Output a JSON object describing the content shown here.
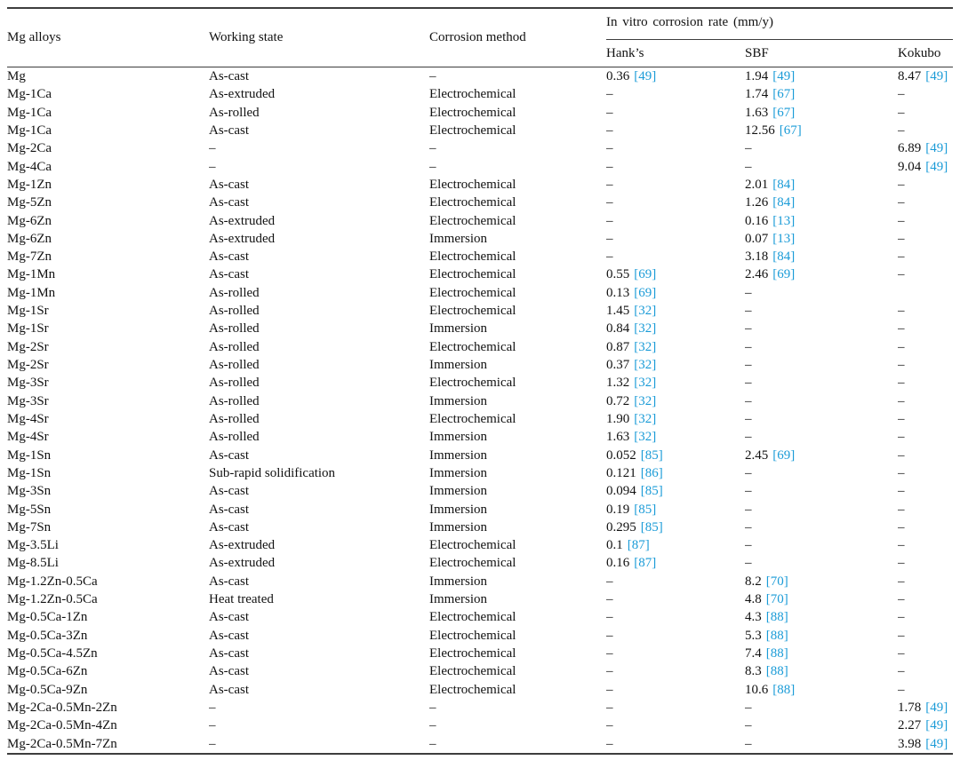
{
  "table": {
    "citation_color": "#1a9bd7",
    "dash": "–",
    "headers": {
      "alloy": "Mg alloys",
      "state": "Working state",
      "method": "Corrosion method",
      "group": "In vitro corrosion rate (mm/y)",
      "hanks": "Hank’s",
      "sbf": "SBF",
      "kokubo": "Kokubo"
    },
    "rows": [
      {
        "alloy": "Mg",
        "state": "As-cast",
        "method": "–",
        "hanks": "0.36",
        "hanks_ref": "[49]",
        "sbf": "1.94",
        "sbf_ref": "[49]",
        "kokubo": "8.47",
        "kokubo_ref": "[49]"
      },
      {
        "alloy": "Mg-1Ca",
        "state": "As-extruded",
        "method": "Electrochemical",
        "hanks": "–",
        "hanks_ref": "",
        "sbf": "1.74",
        "sbf_ref": "[67]",
        "kokubo": "–",
        "kokubo_ref": ""
      },
      {
        "alloy": "Mg-1Ca",
        "state": "As-rolled",
        "method": "Electrochemical",
        "hanks": "–",
        "hanks_ref": "",
        "sbf": "1.63",
        "sbf_ref": "[67]",
        "kokubo": "–",
        "kokubo_ref": ""
      },
      {
        "alloy": "Mg-1Ca",
        "state": "As-cast",
        "method": "Electrochemical",
        "hanks": "–",
        "hanks_ref": "",
        "sbf": "12.56",
        "sbf_ref": "[67]",
        "kokubo": "–",
        "kokubo_ref": ""
      },
      {
        "alloy": "Mg-2Ca",
        "state": "–",
        "method": "–",
        "hanks": "–",
        "hanks_ref": "",
        "sbf": "–",
        "sbf_ref": "",
        "kokubo": "6.89",
        "kokubo_ref": "[49]"
      },
      {
        "alloy": "Mg-4Ca",
        "state": "–",
        "method": "–",
        "hanks": "–",
        "hanks_ref": "",
        "sbf": "–",
        "sbf_ref": "",
        "kokubo": "9.04",
        "kokubo_ref": "[49]"
      },
      {
        "alloy": "Mg-1Zn",
        "state": "As-cast",
        "method": "Electrochemical",
        "hanks": "–",
        "hanks_ref": "",
        "sbf": "2.01",
        "sbf_ref": "[84]",
        "kokubo": "–",
        "kokubo_ref": ""
      },
      {
        "alloy": "Mg-5Zn",
        "state": "As-cast",
        "method": "Electrochemical",
        "hanks": "–",
        "hanks_ref": "",
        "sbf": "1.26",
        "sbf_ref": "[84]",
        "kokubo": "–",
        "kokubo_ref": ""
      },
      {
        "alloy": "Mg-6Zn",
        "state": "As-extruded",
        "method": "Electrochemical",
        "hanks": "–",
        "hanks_ref": "",
        "sbf": "0.16",
        "sbf_ref": "[13]",
        "kokubo": "–",
        "kokubo_ref": ""
      },
      {
        "alloy": "Mg-6Zn",
        "state": "As-extruded",
        "method": "Immersion",
        "hanks": "–",
        "hanks_ref": "",
        "sbf": "0.07",
        "sbf_ref": "[13]",
        "kokubo": "–",
        "kokubo_ref": ""
      },
      {
        "alloy": "Mg-7Zn",
        "state": "As-cast",
        "method": "Electrochemical",
        "hanks": "–",
        "hanks_ref": "",
        "sbf": "3.18",
        "sbf_ref": "[84]",
        "kokubo": "–",
        "kokubo_ref": ""
      },
      {
        "alloy": "Mg-1Mn",
        "state": "As-cast",
        "method": "Electrochemical",
        "hanks": "0.55",
        "hanks_ref": "[69]",
        "sbf": "2.46",
        "sbf_ref": "[69]",
        "kokubo": "–",
        "kokubo_ref": ""
      },
      {
        "alloy": "Mg-1Mn",
        "state": "As-rolled",
        "method": "Electrochemical",
        "hanks": "0.13",
        "hanks_ref": "[69]",
        "sbf": "–",
        "sbf_ref": "",
        "kokubo": "",
        "kokubo_ref": ""
      },
      {
        "alloy": "Mg-1Sr",
        "state": "As-rolled",
        "method": "Electrochemical",
        "hanks": "1.45",
        "hanks_ref": "[32]",
        "sbf": "–",
        "sbf_ref": "",
        "kokubo": "–",
        "kokubo_ref": ""
      },
      {
        "alloy": "Mg-1Sr",
        "state": "As-rolled",
        "method": "Immersion",
        "hanks": "0.84",
        "hanks_ref": "[32]",
        "sbf": "–",
        "sbf_ref": "",
        "kokubo": "–",
        "kokubo_ref": ""
      },
      {
        "alloy": "Mg-2Sr",
        "state": "As-rolled",
        "method": "Electrochemical",
        "hanks": "0.87",
        "hanks_ref": "[32]",
        "sbf": "–",
        "sbf_ref": "",
        "kokubo": "–",
        "kokubo_ref": ""
      },
      {
        "alloy": "Mg-2Sr",
        "state": "As-rolled",
        "method": "Immersion",
        "hanks": "0.37",
        "hanks_ref": "[32]",
        "sbf": "–",
        "sbf_ref": "",
        "kokubo": "–",
        "kokubo_ref": ""
      },
      {
        "alloy": "Mg-3Sr",
        "state": "As-rolled",
        "method": "Electrochemical",
        "hanks": "1.32",
        "hanks_ref": "[32]",
        "sbf": "–",
        "sbf_ref": "",
        "kokubo": "–",
        "kokubo_ref": ""
      },
      {
        "alloy": "Mg-3Sr",
        "state": "As-rolled",
        "method": "Immersion",
        "hanks": "0.72",
        "hanks_ref": "[32]",
        "sbf": "–",
        "sbf_ref": "",
        "kokubo": "–",
        "kokubo_ref": ""
      },
      {
        "alloy": "Mg-4Sr",
        "state": "As-rolled",
        "method": "Electrochemical",
        "hanks": "1.90",
        "hanks_ref": "[32]",
        "sbf": "–",
        "sbf_ref": "",
        "kokubo": "–",
        "kokubo_ref": ""
      },
      {
        "alloy": "Mg-4Sr",
        "state": "As-rolled",
        "method": "Immersion",
        "hanks": "1.63",
        "hanks_ref": "[32]",
        "sbf": "–",
        "sbf_ref": "",
        "kokubo": "–",
        "kokubo_ref": ""
      },
      {
        "alloy": "Mg-1Sn",
        "state": "As-cast",
        "method": "Immersion",
        "hanks": "0.052",
        "hanks_ref": "[85]",
        "sbf": "2.45",
        "sbf_ref": "[69]",
        "kokubo": "–",
        "kokubo_ref": ""
      },
      {
        "alloy": "Mg-1Sn",
        "state": "Sub-rapid solidification",
        "method": "Immersion",
        "hanks": "0.121",
        "hanks_ref": "[86]",
        "sbf": "–",
        "sbf_ref": "",
        "kokubo": "–",
        "kokubo_ref": ""
      },
      {
        "alloy": "Mg-3Sn",
        "state": "As-cast",
        "method": "Immersion",
        "hanks": "0.094",
        "hanks_ref": "[85]",
        "sbf": "–",
        "sbf_ref": "",
        "kokubo": "–",
        "kokubo_ref": ""
      },
      {
        "alloy": "Mg-5Sn",
        "state": "As-cast",
        "method": "Immersion",
        "hanks": "0.19",
        "hanks_ref": "[85]",
        "sbf": "–",
        "sbf_ref": "",
        "kokubo": "–",
        "kokubo_ref": ""
      },
      {
        "alloy": "Mg-7Sn",
        "state": "As-cast",
        "method": "Immersion",
        "hanks": "0.295",
        "hanks_ref": "[85]",
        "sbf": "–",
        "sbf_ref": "",
        "kokubo": "–",
        "kokubo_ref": ""
      },
      {
        "alloy": "Mg-3.5Li",
        "state": "As-extruded",
        "method": "Electrochemical",
        "hanks": "0.1",
        "hanks_ref": "[87]",
        "sbf": "–",
        "sbf_ref": "",
        "kokubo": "–",
        "kokubo_ref": ""
      },
      {
        "alloy": "Mg-8.5Li",
        "state": "As-extruded",
        "method": "Electrochemical",
        "hanks": "0.16",
        "hanks_ref": "[87]",
        "sbf": "–",
        "sbf_ref": "",
        "kokubo": "–",
        "kokubo_ref": ""
      },
      {
        "alloy": "Mg-1.2Zn-0.5Ca",
        "state": "As-cast",
        "method": "Immersion",
        "hanks": "–",
        "hanks_ref": "",
        "sbf": "8.2",
        "sbf_ref": "[70]",
        "kokubo": "–",
        "kokubo_ref": ""
      },
      {
        "alloy": "Mg-1.2Zn-0.5Ca",
        "state": "Heat treated",
        "method": "Immersion",
        "hanks": "–",
        "hanks_ref": "",
        "sbf": "4.8",
        "sbf_ref": "[70]",
        "kokubo": "–",
        "kokubo_ref": ""
      },
      {
        "alloy": "Mg-0.5Ca-1Zn",
        "state": "As-cast",
        "method": "Electrochemical",
        "hanks": "–",
        "hanks_ref": "",
        "sbf": "4.3",
        "sbf_ref": "[88]",
        "kokubo": "–",
        "kokubo_ref": ""
      },
      {
        "alloy": "Mg-0.5Ca-3Zn",
        "state": "As-cast",
        "method": "Electrochemical",
        "hanks": "–",
        "hanks_ref": "",
        "sbf": "5.3",
        "sbf_ref": "[88]",
        "kokubo": "–",
        "kokubo_ref": ""
      },
      {
        "alloy": "Mg-0.5Ca-4.5Zn",
        "state": "As-cast",
        "method": "Electrochemical",
        "hanks": "–",
        "hanks_ref": "",
        "sbf": "7.4",
        "sbf_ref": "[88]",
        "kokubo": "–",
        "kokubo_ref": ""
      },
      {
        "alloy": "Mg-0.5Ca-6Zn",
        "state": "As-cast",
        "method": "Electrochemical",
        "hanks": "–",
        "hanks_ref": "",
        "sbf": "8.3",
        "sbf_ref": "[88]",
        "kokubo": "–",
        "kokubo_ref": ""
      },
      {
        "alloy": "Mg-0.5Ca-9Zn",
        "state": "As-cast",
        "method": "Electrochemical",
        "hanks": "–",
        "hanks_ref": "",
        "sbf": "10.6",
        "sbf_ref": "[88]",
        "kokubo": "–",
        "kokubo_ref": ""
      },
      {
        "alloy": "Mg-2Ca-0.5Mn-2Zn",
        "state": "–",
        "method": "–",
        "hanks": "–",
        "hanks_ref": "",
        "sbf": "–",
        "sbf_ref": "",
        "kokubo": "1.78",
        "kokubo_ref": "[49]"
      },
      {
        "alloy": "Mg-2Ca-0.5Mn-4Zn",
        "state": "–",
        "method": "–",
        "hanks": "–",
        "hanks_ref": "",
        "sbf": "–",
        "sbf_ref": "",
        "kokubo": "2.27",
        "kokubo_ref": "[49]"
      },
      {
        "alloy": "Mg-2Ca-0.5Mn-7Zn",
        "state": "–",
        "method": "–",
        "hanks": "–",
        "hanks_ref": "",
        "sbf": "–",
        "sbf_ref": "",
        "kokubo": "3.98",
        "kokubo_ref": "[49]"
      }
    ]
  }
}
